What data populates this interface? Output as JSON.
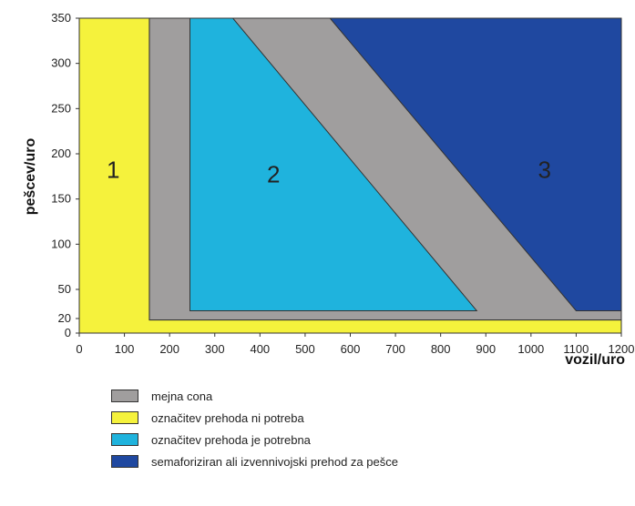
{
  "chart_data": {
    "type": "area",
    "xlabel": "vozil/uro",
    "ylabel": "pešcev/uro",
    "xlim": [
      0,
      1200
    ],
    "ylim": [
      0,
      350
    ],
    "x_ticks": [
      0,
      100,
      200,
      300,
      400,
      500,
      600,
      700,
      800,
      900,
      1000,
      1100,
      1200
    ],
    "y_ticks": [
      0,
      20,
      50,
      100,
      150,
      200,
      250,
      300,
      350
    ],
    "grid": false,
    "legend_position": "bottom",
    "colors": {
      "boundary": "#a09e9e",
      "no_marking": "#f5f23c",
      "marking": "#1fb3dd",
      "signal": "#1f48a0"
    },
    "regions": [
      {
        "key": "boundary",
        "label": "mejna cona",
        "color": "#a09e9e",
        "polygon": [
          [
            155,
            18
          ],
          [
            1200,
            18
          ],
          [
            1200,
            350
          ],
          [
            155,
            350
          ]
        ]
      },
      {
        "key": "no_marking",
        "label": "označitev prehoda ni potreba",
        "color": "#f5f23c",
        "polygon": [
          [
            0,
            0
          ],
          [
            1200,
            0
          ],
          [
            1200,
            18
          ],
          [
            155,
            18
          ],
          [
            155,
            350
          ],
          [
            0,
            350
          ]
        ]
      },
      {
        "key": "marking",
        "label": "označitev prehoda je potrebna",
        "color": "#1fb3dd",
        "polygon": [
          [
            245,
            28
          ],
          [
            880,
            28
          ],
          [
            340,
            350
          ],
          [
            245,
            350
          ]
        ]
      },
      {
        "key": "signal",
        "label": "semaforiziran ali izvennivojski prehod za pešce",
        "color": "#1f48a0",
        "polygon": [
          [
            1100,
            28
          ],
          [
            1200,
            28
          ],
          [
            1200,
            350
          ],
          [
            555,
            350
          ]
        ]
      }
    ],
    "zone_labels": [
      {
        "text": "1",
        "x": 75,
        "y": 180
      },
      {
        "text": "2",
        "x": 430,
        "y": 175
      },
      {
        "text": "3",
        "x": 1030,
        "y": 180
      }
    ]
  },
  "legend": [
    {
      "label": "mejna cona",
      "color": "#a09e9e"
    },
    {
      "label": "označitev prehoda ni potreba",
      "color": "#f5f23c"
    },
    {
      "label": "označitev prehoda je potrebna",
      "color": "#1fb3dd"
    },
    {
      "label": "semaforiziran ali izvennivojski prehod za pešce",
      "color": "#1f48a0"
    }
  ]
}
